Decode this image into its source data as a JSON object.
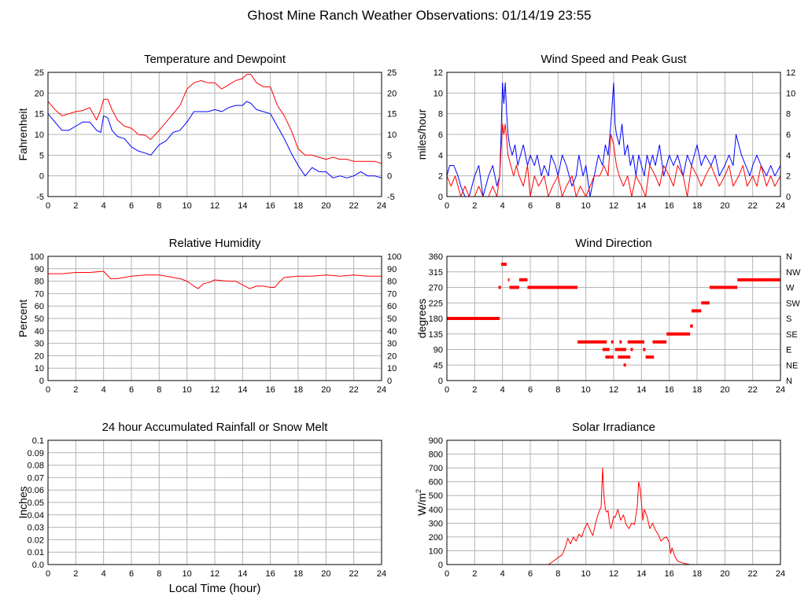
{
  "page": {
    "title": "Ghost Mine Ranch Weather Observations: 01/14/19 23:55",
    "xlabel": "Local Time (hour)"
  },
  "colors": {
    "red": "#ff0000",
    "blue": "#0000ff",
    "grid": "#b4b4b4",
    "frame": "#000000"
  },
  "chart_data": [
    {
      "id": "temp",
      "type": "line",
      "title": "Temperature and Dewpoint",
      "ylabel": "Fahrenheit",
      "xlim": [
        0,
        24
      ],
      "ylim": [
        -5,
        25
      ],
      "xticks": [
        0,
        2,
        4,
        6,
        8,
        10,
        12,
        14,
        16,
        18,
        20,
        22,
        24
      ],
      "yticks": [
        -5,
        0,
        5,
        10,
        15,
        20,
        25
      ],
      "right_axis": true,
      "series": [
        {
          "color": "#ff0000",
          "x": [
            0,
            0.5,
            1,
            1.5,
            2,
            2.5,
            3,
            3.5,
            3.8,
            4,
            4.3,
            4.6,
            5,
            5.5,
            6,
            6.5,
            7,
            7.4,
            8,
            8.5,
            9,
            9.5,
            10,
            10.5,
            11,
            11.5,
            12,
            12.5,
            13,
            13.5,
            14,
            14.3,
            14.6,
            15,
            15.5,
            16,
            16.5,
            17,
            17.5,
            18,
            18.5,
            19,
            19.5,
            20,
            20.5,
            21,
            21.5,
            22,
            22.5,
            23,
            23.5,
            24
          ],
          "y": [
            18,
            16,
            14.5,
            15,
            15.5,
            15.8,
            16.5,
            13.5,
            16,
            18.5,
            18.5,
            16,
            13.5,
            12,
            11.5,
            10,
            9.8,
            8.8,
            11,
            13,
            15,
            17,
            21,
            22.5,
            23,
            22.5,
            22.5,
            21,
            22,
            23,
            23.5,
            24.5,
            24.5,
            22.5,
            21.5,
            21.5,
            17,
            14.5,
            11,
            6.5,
            5,
            5,
            4.5,
            4,
            4.5,
            4,
            4,
            3.5,
            3.5,
            3.5,
            3.5,
            3
          ]
        },
        {
          "color": "#0000ff",
          "x": [
            0,
            0.5,
            1,
            1.5,
            2,
            2.5,
            3,
            3.5,
            3.8,
            4,
            4.3,
            4.6,
            5,
            5.5,
            6,
            6.5,
            7,
            7.4,
            8,
            8.5,
            9,
            9.5,
            10,
            10.5,
            11,
            11.5,
            12,
            12.5,
            13,
            13.5,
            14,
            14.3,
            14.6,
            15,
            15.5,
            16,
            16.5,
            17,
            17.5,
            18,
            18.5,
            19,
            19.5,
            20,
            20.5,
            21,
            21.5,
            22,
            22.5,
            23,
            23.5,
            24
          ],
          "y": [
            15,
            13,
            11,
            11,
            12,
            13,
            13,
            11,
            10.5,
            14.5,
            14,
            11,
            9.5,
            9,
            7,
            6,
            5.5,
            5,
            7.5,
            8.5,
            10.5,
            11,
            13,
            15.5,
            15.5,
            15.5,
            16,
            15.5,
            16.5,
            17,
            17,
            18,
            17.5,
            16,
            15.5,
            15,
            12,
            9,
            5.5,
            2.5,
            0,
            2,
            1,
            1,
            -0.5,
            0,
            -0.5,
            0,
            1,
            0,
            0,
            -0.5
          ]
        }
      ]
    },
    {
      "id": "wind",
      "type": "line",
      "title": "Wind Speed and Peak Gust",
      "ylabel": "miles/hour",
      "xlim": [
        0,
        24
      ],
      "ylim": [
        0,
        12
      ],
      "xticks": [
        0,
        2,
        4,
        6,
        8,
        10,
        12,
        14,
        16,
        18,
        20,
        22,
        24
      ],
      "yticks": [
        0,
        2,
        4,
        6,
        8,
        10,
        12
      ],
      "right_axis": true,
      "series": [
        {
          "color": "#0000ff",
          "x": [
            0,
            0.2,
            0.5,
            0.8,
            1,
            1.3,
            1.6,
            2,
            2.3,
            2.6,
            3,
            3.3,
            3.6,
            3.8,
            3.9,
            4,
            4.1,
            4.2,
            4.3,
            4.4,
            4.5,
            4.7,
            4.9,
            5.1,
            5.3,
            5.5,
            5.8,
            6,
            6.3,
            6.5,
            6.8,
            7,
            7.3,
            7.5,
            7.8,
            8,
            8.3,
            8.6,
            9,
            9.3,
            9.5,
            9.8,
            10,
            10.3,
            10.6,
            10.9,
            11.2,
            11.4,
            11.6,
            11.8,
            11.9,
            12,
            12.1,
            12.2,
            12.4,
            12.6,
            12.8,
            13,
            13.2,
            13.4,
            13.6,
            13.8,
            14,
            14.2,
            14.4,
            14.6,
            14.8,
            15,
            15.3,
            15.6,
            16,
            16.3,
            16.6,
            17,
            17.3,
            17.6,
            18,
            18.3,
            18.6,
            19,
            19.3,
            19.6,
            20,
            20.3,
            20.6,
            20.8,
            21,
            21.2,
            21.5,
            21.8,
            22,
            22.3,
            22.6,
            23,
            23.3,
            23.6,
            24
          ],
          "y": [
            2,
            3,
            3,
            2,
            1,
            0,
            0,
            2,
            3,
            0,
            2,
            3,
            1,
            2,
            6,
            11,
            9,
            11,
            8,
            6,
            5,
            4,
            5,
            3,
            4,
            5,
            3,
            4,
            3,
            4,
            2,
            3,
            2,
            4,
            3,
            2,
            4,
            3,
            1,
            2,
            4,
            2,
            3,
            0,
            2,
            4,
            3,
            5,
            4,
            7,
            9,
            11,
            7,
            6,
            5,
            7,
            4,
            5,
            3,
            4,
            2,
            4,
            3,
            2,
            4,
            3,
            4,
            3,
            5,
            2,
            4,
            3,
            4,
            2,
            4,
            3,
            5,
            3,
            4,
            3,
            4,
            2,
            3,
            4,
            3,
            6,
            5,
            4,
            3,
            2,
            3,
            4,
            3,
            2,
            3,
            2,
            3
          ]
        },
        {
          "color": "#ff0000",
          "x": [
            0,
            0.3,
            0.6,
            1,
            1.3,
            1.6,
            2,
            2.3,
            2.6,
            3,
            3.3,
            3.6,
            3.8,
            4,
            4.1,
            4.2,
            4.4,
            4.6,
            4.8,
            5,
            5.2,
            5.5,
            5.8,
            6,
            6.3,
            6.6,
            7,
            7.3,
            7.6,
            8,
            8.3,
            8.6,
            9,
            9.3,
            9.6,
            10,
            10.3,
            10.6,
            11,
            11.3,
            11.6,
            11.8,
            12,
            12.2,
            12.4,
            12.7,
            13,
            13.3,
            13.6,
            14,
            14.3,
            14.6,
            15,
            15.3,
            15.6,
            16,
            16.3,
            16.6,
            17,
            17.3,
            17.6,
            18,
            18.3,
            18.6,
            19,
            19.3,
            19.6,
            20,
            20.3,
            20.6,
            21,
            21.3,
            21.6,
            22,
            22.3,
            22.6,
            23,
            23.3,
            23.6,
            24
          ],
          "y": [
            2,
            1,
            2,
            0,
            1,
            0,
            0,
            1,
            0,
            0,
            1,
            0,
            2,
            7,
            6,
            7,
            4,
            3,
            2,
            3,
            2,
            1,
            3,
            0,
            2,
            1,
            2,
            0,
            1,
            2,
            0,
            1,
            2,
            0,
            1,
            0,
            1,
            2,
            2,
            3,
            2,
            6,
            5,
            3,
            2,
            1,
            2,
            0,
            2,
            1,
            0,
            3,
            2,
            1,
            3,
            2,
            1,
            3,
            2,
            0,
            3,
            2,
            1,
            2,
            3,
            2,
            1,
            2,
            3,
            1,
            2,
            3,
            1,
            2,
            1,
            3,
            1,
            2,
            1,
            2
          ]
        }
      ]
    },
    {
      "id": "rh",
      "type": "line",
      "title": "Relative Humidity",
      "ylabel": "Percent",
      "xlim": [
        0,
        24
      ],
      "ylim": [
        0,
        100
      ],
      "xticks": [
        0,
        2,
        4,
        6,
        8,
        10,
        12,
        14,
        16,
        18,
        20,
        22,
        24
      ],
      "yticks": [
        0,
        10,
        20,
        30,
        40,
        50,
        60,
        70,
        80,
        90,
        100
      ],
      "right_axis": true,
      "series": [
        {
          "color": "#ff0000",
          "x": [
            0,
            1,
            2,
            3,
            4,
            4.5,
            5,
            6,
            7,
            8,
            8.5,
            9,
            9.5,
            10,
            10.5,
            10.8,
            11.2,
            11.6,
            12,
            13,
            13.5,
            14,
            14.5,
            15,
            15.5,
            16,
            16.3,
            16.7,
            17,
            18,
            19,
            20,
            21,
            22,
            23,
            24
          ],
          "y": [
            86,
            86,
            87,
            87,
            88,
            82,
            82,
            84,
            85,
            85,
            84,
            83,
            82,
            80,
            76,
            74,
            78,
            79,
            81,
            80,
            80,
            77,
            74,
            76,
            76,
            75,
            75,
            80,
            83,
            84,
            84,
            85,
            84,
            85,
            84,
            84
          ]
        }
      ]
    },
    {
      "id": "dir",
      "type": "scatter",
      "title": "Wind Direction",
      "ylabel": "degrees",
      "xlim": [
        0,
        24
      ],
      "ylim": [
        0,
        360
      ],
      "xticks": [
        0,
        2,
        4,
        6,
        8,
        10,
        12,
        14,
        16,
        18,
        20,
        22,
        24
      ],
      "yticks": [
        0,
        45,
        90,
        135,
        180,
        225,
        270,
        315,
        360
      ],
      "right_labels": [
        "N",
        "NE",
        "E",
        "SE",
        "S",
        "SW",
        "W",
        "NW",
        "N"
      ],
      "segments": [
        {
          "x0": 0,
          "x1": 3.8,
          "y": 180
        },
        {
          "x0": 3.9,
          "x1": 4.3,
          "y": 337
        },
        {
          "x0": 4.4,
          "x1": 4.5,
          "y": 292
        },
        {
          "x0": 4.5,
          "x1": 5.2,
          "y": 270
        },
        {
          "x0": 5.2,
          "x1": 5.8,
          "y": 292
        },
        {
          "x0": 5.8,
          "x1": 9.4,
          "y": 270
        },
        {
          "x0": 9.4,
          "x1": 11.5,
          "y": 112
        },
        {
          "x0": 11.2,
          "x1": 11.7,
          "y": 90
        },
        {
          "x0": 11.4,
          "x1": 11.8,
          "y": 68
        },
        {
          "x0": 12.1,
          "x1": 12.9,
          "y": 90
        },
        {
          "x0": 12.3,
          "x1": 13.2,
          "y": 68
        },
        {
          "x0": 13.0,
          "x1": 14.2,
          "y": 112
        },
        {
          "x0": 14.3,
          "x1": 14.9,
          "y": 68
        },
        {
          "x0": 14.8,
          "x1": 15.8,
          "y": 112
        },
        {
          "x0": 15.8,
          "x1": 17.5,
          "y": 135
        },
        {
          "x0": 17.5,
          "x1": 17.7,
          "y": 158
        },
        {
          "x0": 17.6,
          "x1": 18.3,
          "y": 202
        },
        {
          "x0": 18.3,
          "x1": 18.9,
          "y": 225
        },
        {
          "x0": 18.9,
          "x1": 20.9,
          "y": 270
        },
        {
          "x0": 20.9,
          "x1": 24,
          "y": 292
        }
      ],
      "points": [
        {
          "x": 3.8,
          "y": 270
        },
        {
          "x": 11.9,
          "y": 112
        },
        {
          "x": 12.5,
          "y": 112
        },
        {
          "x": 12.8,
          "y": 45
        },
        {
          "x": 13.3,
          "y": 90
        },
        {
          "x": 14.2,
          "y": 90
        },
        {
          "x": 11.9,
          "y": 68
        }
      ],
      "color": "#ff0000"
    },
    {
      "id": "rain",
      "type": "line",
      "title": "24 hour Accumulated Rainfall or Snow Melt",
      "ylabel": "Inches",
      "xlim": [
        0,
        24
      ],
      "ylim": [
        0,
        0.1
      ],
      "xticks": [
        0,
        2,
        4,
        6,
        8,
        10,
        12,
        14,
        16,
        18,
        20,
        22,
        24
      ],
      "yticks": [
        "0.0",
        "0.01",
        "0.02",
        "0.03",
        "0.04",
        "0.05",
        "0.06",
        "0.07",
        "0.08",
        "0.09",
        "0.1"
      ],
      "right_axis": false,
      "series": [
        {
          "color": "#ff0000",
          "x": [
            0,
            24
          ],
          "y": [
            0,
            0
          ]
        }
      ]
    },
    {
      "id": "solar",
      "type": "line",
      "title": "Solar Irradiance",
      "ylabel": "W/m",
      "ylabel_sup": "2",
      "xlim": [
        0,
        24
      ],
      "ylim": [
        0,
        900
      ],
      "xticks": [
        0,
        2,
        4,
        6,
        8,
        10,
        12,
        14,
        16,
        18,
        20,
        22,
        24
      ],
      "yticks": [
        0,
        100,
        200,
        300,
        400,
        500,
        600,
        700,
        800,
        900
      ],
      "right_axis": false,
      "series": [
        {
          "color": "#ff0000",
          "x": [
            0,
            7.3,
            7.6,
            8,
            8.3,
            8.5,
            8.7,
            8.9,
            9.1,
            9.3,
            9.5,
            9.7,
            9.9,
            10.1,
            10.3,
            10.5,
            10.7,
            10.9,
            11.1,
            11.2,
            11.3,
            11.4,
            11.5,
            11.6,
            11.7,
            11.8,
            11.9,
            12,
            12.1,
            12.3,
            12.5,
            12.7,
            12.9,
            13.1,
            13.3,
            13.5,
            13.7,
            13.8,
            13.9,
            14,
            14.1,
            14.2,
            14.4,
            14.6,
            14.8,
            15,
            15.2,
            15.4,
            15.6,
            15.8,
            16,
            16.1,
            16.2,
            16.4,
            16.6,
            17,
            17.5,
            24
          ],
          "y": [
            0,
            0,
            20,
            50,
            70,
            120,
            190,
            150,
            200,
            170,
            220,
            200,
            260,
            300,
            250,
            210,
            300,
            370,
            420,
            700,
            500,
            400,
            380,
            390,
            300,
            260,
            300,
            350,
            340,
            400,
            320,
            360,
            290,
            260,
            300,
            290,
            420,
            600,
            550,
            450,
            320,
            400,
            350,
            260,
            300,
            250,
            220,
            170,
            190,
            200,
            160,
            80,
            120,
            60,
            25,
            10,
            0,
            0
          ]
        }
      ]
    }
  ]
}
